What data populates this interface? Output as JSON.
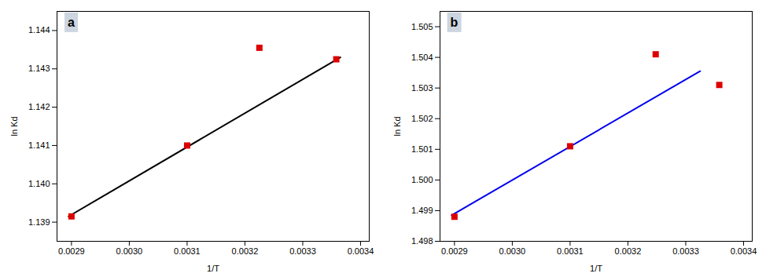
{
  "chart_data": [
    {
      "type": "scatter",
      "xlabel": "1/T",
      "ylabel": "ln Kd",
      "annotations": [
        {
          "text": "a",
          "color": "#ccd5e0"
        }
      ],
      "xlim": [
        0.002875,
        0.003415
      ],
      "ylim": [
        1.1385,
        1.1445
      ],
      "xticks": [
        0.0029,
        {
          "value": 0.003,
          "label": "0.0030"
        },
        0.0031,
        0.0032,
        0.0033,
        0.0034
      ],
      "yticks": [
        1.139,
        {
          "value": 1.14,
          "label": "1.140"
        },
        1.141,
        1.142,
        1.143,
        1.144
      ],
      "series": [
        {
          "type": "line",
          "color": "#000000",
          "x": [
            0.002895,
            0.003365
          ],
          "values": [
            1.13915,
            1.1433
          ]
        },
        {
          "type": "scatter",
          "color": "#dd0000",
          "marker": "square",
          "x": [
            0.0029,
            0.0031,
            0.003225,
            0.003358
          ],
          "values": [
            1.13915,
            1.141,
            1.14355,
            1.14325
          ]
        }
      ]
    },
    {
      "type": "scatter",
      "xlabel": "1/T",
      "ylabel": "ln Kd",
      "annotations": [
        {
          "text": "b",
          "color": "#ccd5e0"
        }
      ],
      "xlim": [
        0.002875,
        0.003415
      ],
      "ylim": [
        1.498,
        1.5055
      ],
      "xticks": [
        0.0029,
        {
          "value": 0.003,
          "label": "0.0030"
        },
        0.0031,
        0.0032,
        0.0033,
        0.0034
      ],
      "yticks": [
        1.498,
        1.499,
        {
          "value": 1.5,
          "label": "1.500"
        },
        1.501,
        1.502,
        1.503,
        1.504,
        1.505
      ],
      "series": [
        {
          "type": "line",
          "color": "#0000ee",
          "x": [
            0.002895,
            0.003325
          ],
          "values": [
            1.49885,
            1.50355
          ]
        },
        {
          "type": "scatter",
          "color": "#dd0000",
          "marker": "square",
          "x": [
            0.0029,
            0.0031,
            0.003248,
            0.003358
          ],
          "values": [
            1.4988,
            1.5011,
            1.5041,
            1.5031
          ]
        }
      ]
    }
  ]
}
